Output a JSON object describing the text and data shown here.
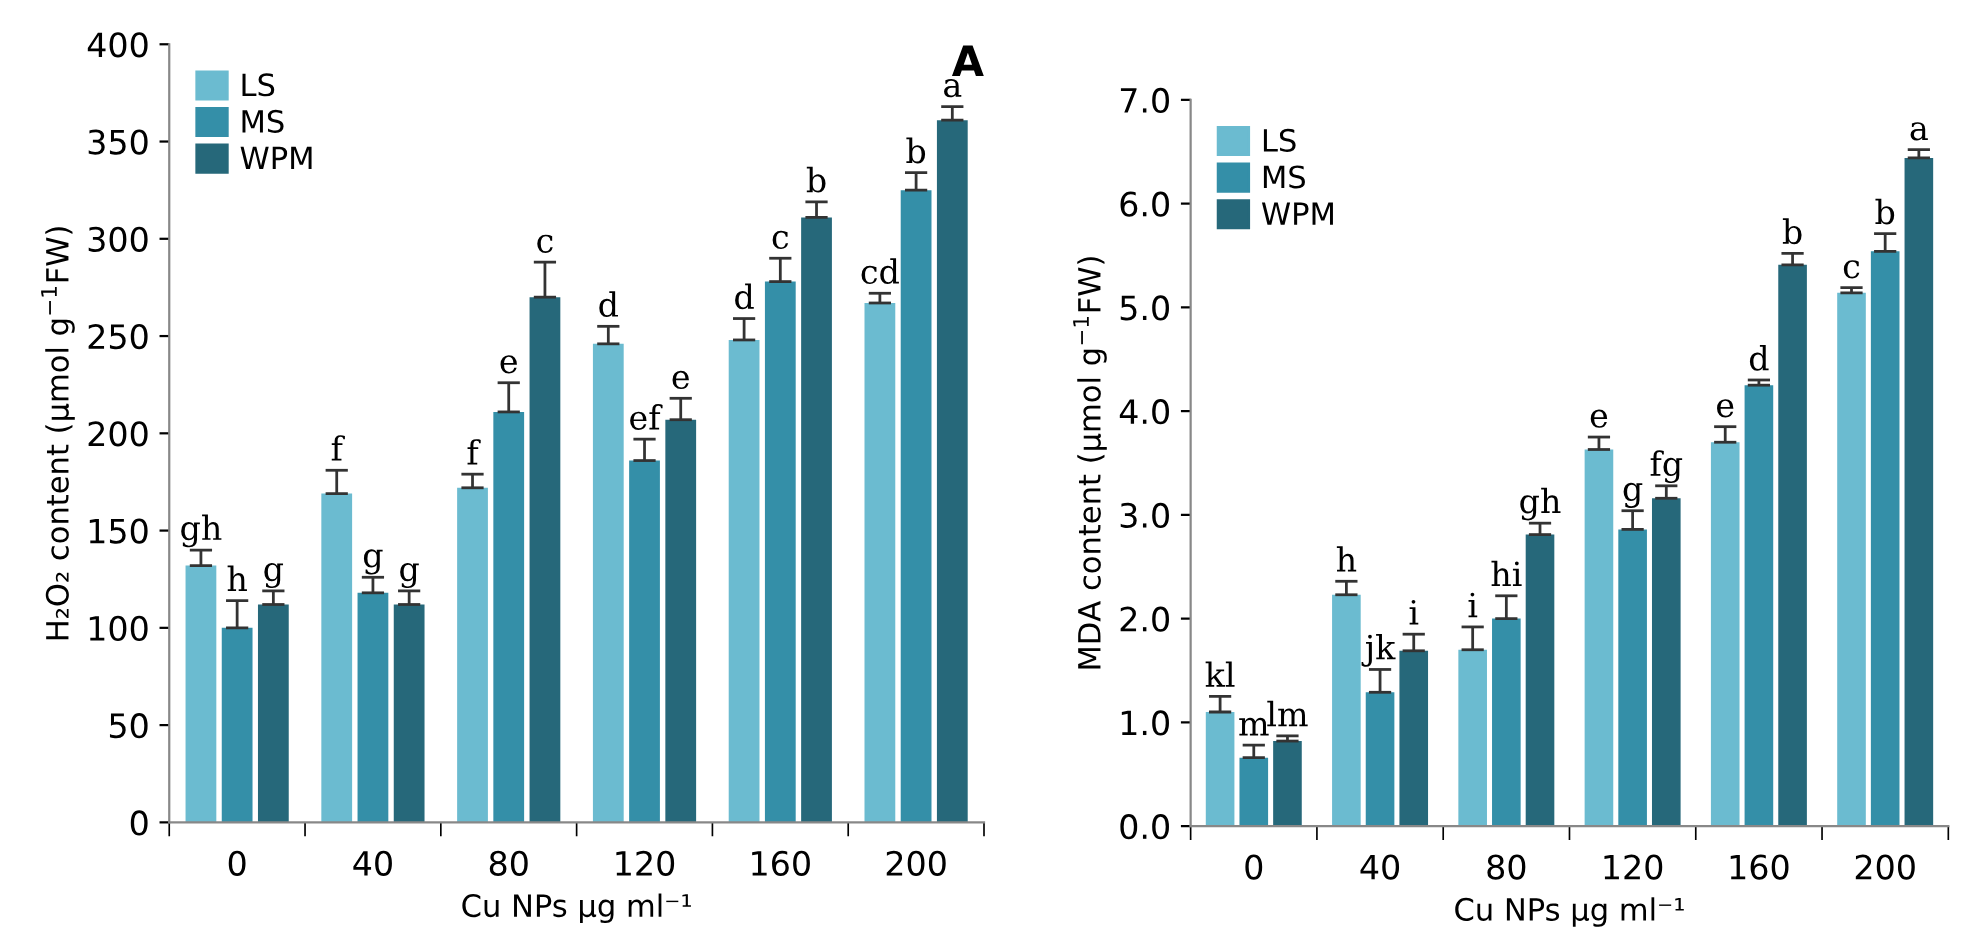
{
  "chart_data": [
    {
      "type": "bar",
      "categories": [
        "0",
        "40",
        "80",
        "120",
        "160",
        "200"
      ],
      "xlabel": "Cu NPs µg ml⁻¹",
      "ylabel": "H₂O₂ content (µmol g$^{−1}$FW)",
      "ylim": [
        0,
        400
      ],
      "yticks": [
        0,
        50,
        100,
        150,
        200,
        250,
        300,
        350,
        400
      ],
      "legend": "top left",
      "grid": false,
      "annotations": [
        "A"
      ],
      "series": [
        {
          "name": "LS",
          "color": "#6bbbd0",
          "values": [
            132,
            169,
            172,
            246,
            248,
            267
          ],
          "errors": [
            [
              132,
              140
            ],
            [
              169,
              181
            ],
            [
              172,
              179
            ],
            [
              246,
              255
            ],
            [
              248,
              259
            ],
            [
              267,
              272
            ]
          ],
          "value_labels": [
            "gh",
            "f",
            "f",
            "d",
            "d",
            "cd"
          ]
        },
        {
          "name": "MS",
          "color": "#348fa8",
          "values": [
            100,
            118,
            211,
            186,
            278,
            325
          ],
          "errors": [
            [
              100,
              114
            ],
            [
              118,
              126
            ],
            [
              211,
              226
            ],
            [
              186,
              197
            ],
            [
              278,
              290
            ],
            [
              325,
              334
            ]
          ],
          "value_labels": [
            "h",
            "g",
            "e",
            "ef",
            "c",
            "b"
          ]
        },
        {
          "name": "WPM",
          "color": "#26687a",
          "values": [
            112,
            112,
            270,
            207,
            311,
            361
          ],
          "errors": [
            [
              112,
              119
            ],
            [
              112,
              119
            ],
            [
              270,
              288
            ],
            [
              207,
              218
            ],
            [
              311,
              319
            ],
            [
              361,
              368
            ]
          ],
          "value_labels": [
            "g",
            "g",
            "c",
            "e",
            "b",
            "a"
          ]
        }
      ]
    },
    {
      "type": "bar",
      "categories": [
        "0",
        "40",
        "80",
        "120",
        "160",
        "200"
      ],
      "xlabel": "Cu NPs µg ml⁻¹",
      "ylabel": "MDA content (µmol g$^{−1}$FW)",
      "ylim": [
        0,
        7
      ],
      "yticks": [
        {
          "value": 0,
          "label": "0.0"
        },
        {
          "value": 1,
          "label": "1.0"
        },
        {
          "value": 2,
          "label": "2.0"
        },
        {
          "value": 3,
          "label": "3.0"
        },
        {
          "value": 4,
          "label": "4.0"
        },
        {
          "value": 5,
          "label": "5.0"
        },
        {
          "value": 6,
          "label": "6.0"
        },
        {
          "value": 7,
          "label": "7.0"
        }
      ],
      "legend": "top left",
      "grid": false,
      "series": [
        {
          "name": "LS",
          "color": "#6bbbd0",
          "values": [
            1.1,
            2.23,
            1.7,
            3.63,
            3.7,
            5.14
          ],
          "errors": [
            [
              1.1,
              1.25
            ],
            [
              2.23,
              2.36
            ],
            [
              1.7,
              1.92
            ],
            [
              3.63,
              3.75
            ],
            [
              3.7,
              3.85
            ],
            [
              5.14,
              5.19
            ]
          ],
          "value_labels": [
            "kl",
            "h",
            "i",
            "e",
            "e",
            "c"
          ]
        },
        {
          "name": "MS",
          "color": "#348fa8",
          "values": [
            0.66,
            1.29,
            2.0,
            2.86,
            4.25,
            5.54
          ],
          "errors": [
            [
              0.66,
              0.78
            ],
            [
              1.29,
              1.51
            ],
            [
              2.0,
              2.22
            ],
            [
              2.86,
              3.04
            ],
            [
              4.25,
              4.3
            ],
            [
              5.54,
              5.71
            ]
          ],
          "value_labels": [
            "m",
            "jk",
            "hi",
            "g",
            "d",
            "b"
          ]
        },
        {
          "name": "WPM",
          "color": "#26687a",
          "values": [
            0.82,
            1.69,
            2.81,
            3.16,
            5.41,
            6.44
          ],
          "errors": [
            [
              0.82,
              0.87
            ],
            [
              1.69,
              1.85
            ],
            [
              2.81,
              2.92
            ],
            [
              3.16,
              3.28
            ],
            [
              5.41,
              5.52
            ],
            [
              6.44,
              6.52
            ]
          ],
          "value_labels": [
            "lm",
            "i",
            "gh",
            "fg",
            "b",
            "a"
          ]
        }
      ]
    }
  ]
}
